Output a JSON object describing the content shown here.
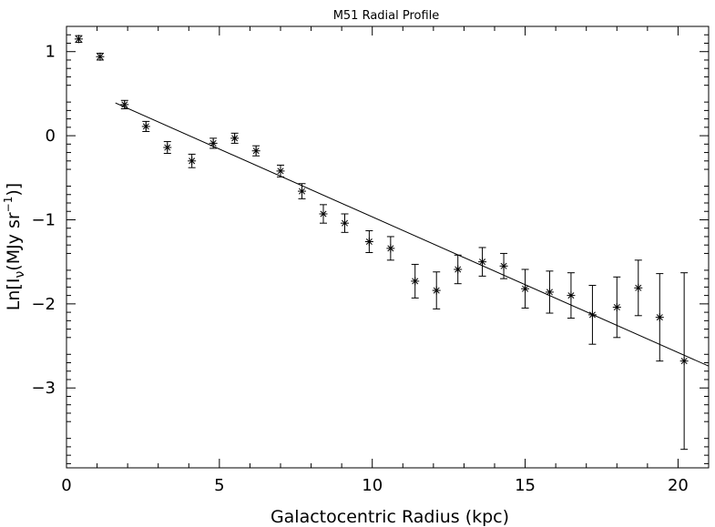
{
  "chart_data": {
    "type": "scatter",
    "title": "M51 Radial Profile",
    "xlabel": "Galactocentric Radius (kpc)",
    "ylabel_parts": {
      "prefix": "Ln[I",
      "subscript": "ν",
      "middle": "(MJy sr",
      "superscript": "−1",
      "suffix": ")]"
    },
    "xlim": [
      0,
      21
    ],
    "ylim": [
      -3.95,
      1.3
    ],
    "x_ticks": [
      0,
      5,
      10,
      15,
      20
    ],
    "x_tick_labels": [
      "0",
      "5",
      "10",
      "15",
      "20"
    ],
    "y_ticks": [
      1,
      0,
      -1,
      -2,
      -3
    ],
    "y_tick_labels": [
      "1",
      "0",
      "−1",
      "−2",
      "−3"
    ],
    "grid": false,
    "series": [
      {
        "marker": "asterisk",
        "x": [
          0.4,
          1.1,
          1.9,
          2.6,
          3.3,
          4.1,
          4.8,
          5.5,
          6.2,
          7.0,
          7.7,
          8.4,
          9.1,
          9.9,
          10.6,
          11.4,
          12.1,
          12.8,
          13.6,
          14.3,
          15.0,
          15.8,
          16.5,
          17.2,
          18.0,
          18.7,
          19.4,
          20.2
        ],
        "y": [
          1.15,
          0.94,
          0.37,
          0.11,
          -0.14,
          -0.3,
          -0.09,
          -0.03,
          -0.18,
          -0.42,
          -0.66,
          -0.93,
          -1.04,
          -1.26,
          -1.34,
          -1.73,
          -1.84,
          -1.59,
          -1.5,
          -1.55,
          -1.82,
          -1.86,
          -1.9,
          -2.13,
          -2.04,
          -1.81,
          -2.16,
          -2.68
        ],
        "err": [
          0.04,
          0.04,
          0.05,
          0.06,
          0.07,
          0.08,
          0.06,
          0.06,
          0.06,
          0.07,
          0.09,
          0.11,
          0.11,
          0.13,
          0.14,
          0.2,
          0.22,
          0.17,
          0.17,
          0.15,
          0.23,
          0.25,
          0.27,
          0.35,
          0.36,
          0.33,
          0.52,
          1.05
        ]
      },
      {
        "type": "line",
        "x": [
          1.6,
          21.0
        ],
        "y": [
          0.39,
          -2.74
        ]
      }
    ]
  }
}
